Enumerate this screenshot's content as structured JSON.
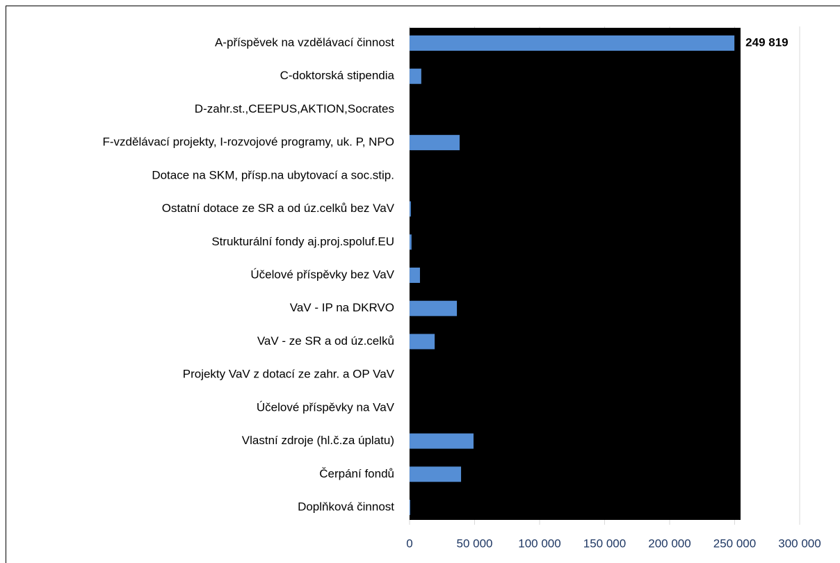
{
  "chart_data": {
    "type": "bar",
    "orientation": "horizontal",
    "categories": [
      "A-příspěvek na vzdělávací činnost",
      "C-doktorská stipendia",
      "D-zahr.st.,CEEPUS,AKTION,Socrates",
      "F-vzdělávací projekty, I-rozvojové programy, uk. P, NPO",
      "Dotace na SKM, přísp.na ubytovací a soc.stip.",
      "Ostatní dotace ze SR a od úz.celků bez VaV",
      "Strukturální fondy aj.proj.spoluf.EU",
      "Účelové příspěvky bez VaV",
      "VaV - IP na DKRVO",
      "VaV - ze SR a od úz.celků",
      "Projekty VaV z dotací ze zahr. a OP VaV",
      "Účelové příspěvky  na VaV ",
      "Vlastní zdroje (hl.č.za úplatu)",
      "Čerpání fondů",
      "Doplňková činnost"
    ],
    "values": [
      249819,
      9000,
      0,
      38500,
      0,
      1000,
      1500,
      8000,
      36400,
      19300,
      0,
      0,
      49200,
      39600,
      500
    ],
    "value_labels": [
      "249 819",
      null,
      null,
      null,
      null,
      null,
      null,
      null,
      null,
      null,
      null,
      null,
      null,
      null,
      null
    ],
    "color": "#558ed5",
    "xlim": [
      0,
      300000
    ],
    "xticks": [
      0,
      {
        "value": 50000,
        "label": "50 000"
      },
      {
        "value": 100000,
        "label": "100 000"
      },
      {
        "value": 150000,
        "label": "150 000"
      },
      {
        "value": 200000,
        "label": "200 000"
      },
      {
        "value": 250000,
        "label": "250 000"
      },
      {
        "value": 300000,
        "label": "300 000"
      }
    ],
    "grid": true
  }
}
